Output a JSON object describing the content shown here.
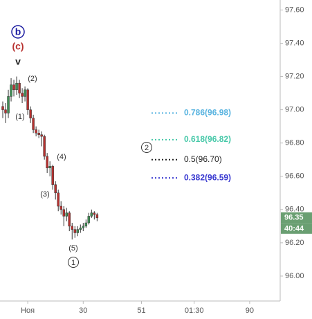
{
  "chart_data": {
    "type": "candlestick",
    "x": [
      1,
      2,
      3,
      4,
      5,
      6,
      7,
      8,
      9,
      10,
      11,
      12,
      13,
      14,
      15,
      16,
      17,
      18,
      19,
      20,
      21,
      22,
      23,
      24,
      25,
      26,
      27,
      28,
      29,
      30,
      31,
      32,
      33,
      34,
      35
    ],
    "open": [
      97.02,
      97.0,
      96.98,
      97.08,
      97.15,
      97.12,
      97.16,
      97.1,
      97.08,
      97.12,
      97.0,
      96.95,
      96.88,
      96.86,
      96.85,
      96.84,
      96.72,
      96.65,
      96.66,
      96.55,
      96.5,
      96.42,
      96.4,
      96.36,
      96.38,
      96.3,
      96.28,
      96.26,
      96.28,
      96.29,
      96.3,
      96.32,
      96.36,
      96.38,
      96.37
    ],
    "high": [
      97.05,
      97.04,
      97.12,
      97.19,
      97.18,
      97.2,
      97.18,
      97.13,
      97.14,
      97.13,
      97.02,
      96.97,
      96.9,
      96.88,
      96.87,
      96.85,
      96.74,
      96.69,
      96.67,
      96.57,
      96.52,
      96.45,
      96.42,
      96.41,
      96.39,
      96.32,
      96.3,
      96.3,
      96.31,
      96.32,
      96.34,
      96.38,
      96.4,
      96.39,
      96.38
    ],
    "low": [
      96.95,
      96.92,
      96.95,
      97.05,
      97.08,
      97.09,
      97.07,
      97.04,
      97.05,
      96.97,
      96.92,
      96.86,
      96.84,
      96.83,
      96.78,
      96.7,
      96.62,
      96.6,
      96.52,
      96.46,
      96.39,
      96.37,
      96.3,
      96.33,
      96.27,
      96.22,
      96.23,
      96.24,
      96.26,
      96.27,
      96.29,
      96.31,
      96.35,
      96.34,
      96.33
    ],
    "close": [
      97.0,
      96.98,
      97.08,
      97.15,
      97.12,
      97.16,
      97.1,
      97.08,
      97.12,
      97.0,
      96.95,
      96.88,
      96.86,
      96.85,
      96.84,
      96.72,
      96.65,
      96.66,
      96.55,
      96.5,
      96.42,
      96.4,
      96.36,
      96.38,
      96.3,
      96.28,
      96.26,
      96.28,
      96.29,
      96.3,
      96.32,
      96.36,
      96.38,
      96.37,
      96.35
    ],
    "up_color": "#3f8f55",
    "down_color": "#b8312f",
    "xlim": [
      0,
      101
    ],
    "xticks": [
      {
        "value": 10,
        "label": "Ноя"
      },
      30,
      51,
      {
        "value": 70,
        "label": "01:30"
      },
      90
    ],
    "ylim": [
      95.85,
      97.66
    ],
    "yticks": [
      {
        "value": 97.6,
        "label": "97.60"
      },
      {
        "value": 97.4,
        "label": "97.40"
      },
      {
        "value": 97.2,
        "label": "97.20"
      },
      {
        "value": 97,
        "label": "97.00"
      },
      {
        "value": 96.8,
        "label": "96.80"
      },
      {
        "value": 96.6,
        "label": "96.60"
      },
      {
        "value": 96.4,
        "label": "96.40"
      },
      {
        "value": 96.2,
        "label": "96.20"
      },
      {
        "value": 96,
        "label": "96.00"
      }
    ],
    "annotations": [
      "b",
      "(c)",
      "v",
      "(2)",
      "(1)",
      "(4)",
      "(3)",
      "(5)",
      "1",
      "2"
    ],
    "fib_levels": [
      {
        "label": "0.786(96.98)",
        "value": 96.98,
        "color": "#5ab4e0"
      },
      {
        "label": "0.618(96.82)",
        "value": 96.82,
        "color": "#45c8a8"
      },
      {
        "label": "0.5(96.70)",
        "value": 96.7,
        "color": "#222222"
      },
      {
        "label": "0.382(96.59)",
        "value": 96.59,
        "color": "#3a3ad0"
      }
    ],
    "last_price": 96.35,
    "last_price_color": "#6a9f72",
    "countdown": "40:44"
  }
}
